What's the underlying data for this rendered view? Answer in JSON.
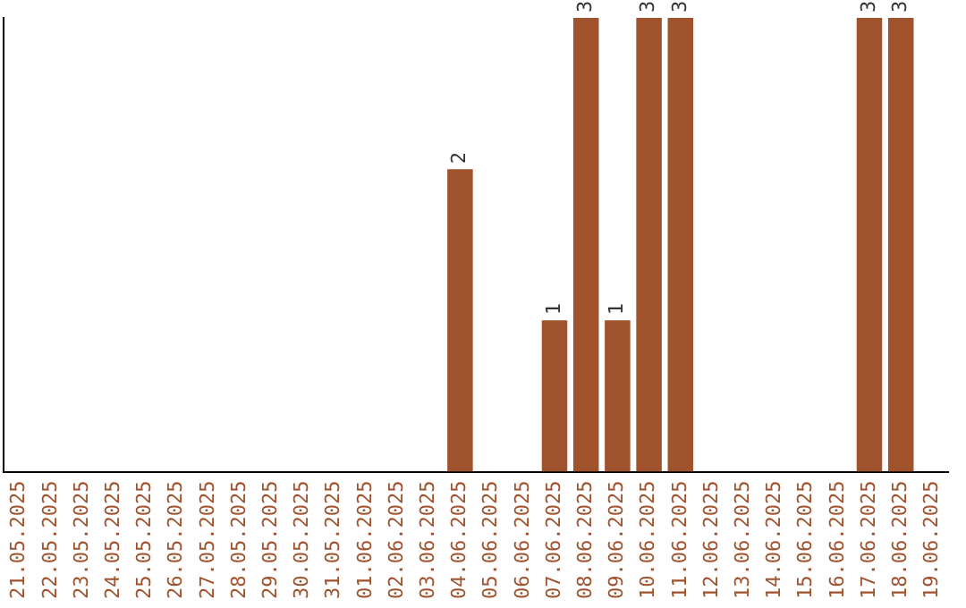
{
  "chart_data": {
    "type": "bar",
    "categories": [
      "21.05.2025",
      "22.05.2025",
      "23.05.2025",
      "24.05.2025",
      "25.05.2025",
      "26.05.2025",
      "27.05.2025",
      "28.05.2025",
      "29.05.2025",
      "30.05.2025",
      "31.05.2025",
      "01.06.2025",
      "02.06.2025",
      "03.06.2025",
      "04.06.2025",
      "05.06.2025",
      "06.06.2025",
      "07.06.2025",
      "08.06.2025",
      "09.06.2025",
      "10.06.2025",
      "11.06.2025",
      "12.06.2025",
      "13.06.2025",
      "14.06.2025",
      "15.06.2025",
      "16.06.2025",
      "17.06.2025",
      "18.06.2025",
      "19.06.2025"
    ],
    "values": [
      null,
      null,
      null,
      null,
      null,
      null,
      null,
      null,
      null,
      null,
      null,
      null,
      null,
      null,
      2,
      null,
      null,
      1,
      3,
      1,
      3,
      3,
      null,
      null,
      null,
      null,
      null,
      3,
      3,
      null
    ],
    "value_labels": [
      null,
      null,
      null,
      null,
      null,
      null,
      null,
      null,
      null,
      null,
      null,
      null,
      null,
      null,
      "2",
      null,
      null,
      "1",
      "3",
      "1",
      "3",
      "3",
      null,
      null,
      null,
      null,
      null,
      "3",
      "3",
      null
    ],
    "color": "#a0522d",
    "grid": false,
    "legend": false
  }
}
